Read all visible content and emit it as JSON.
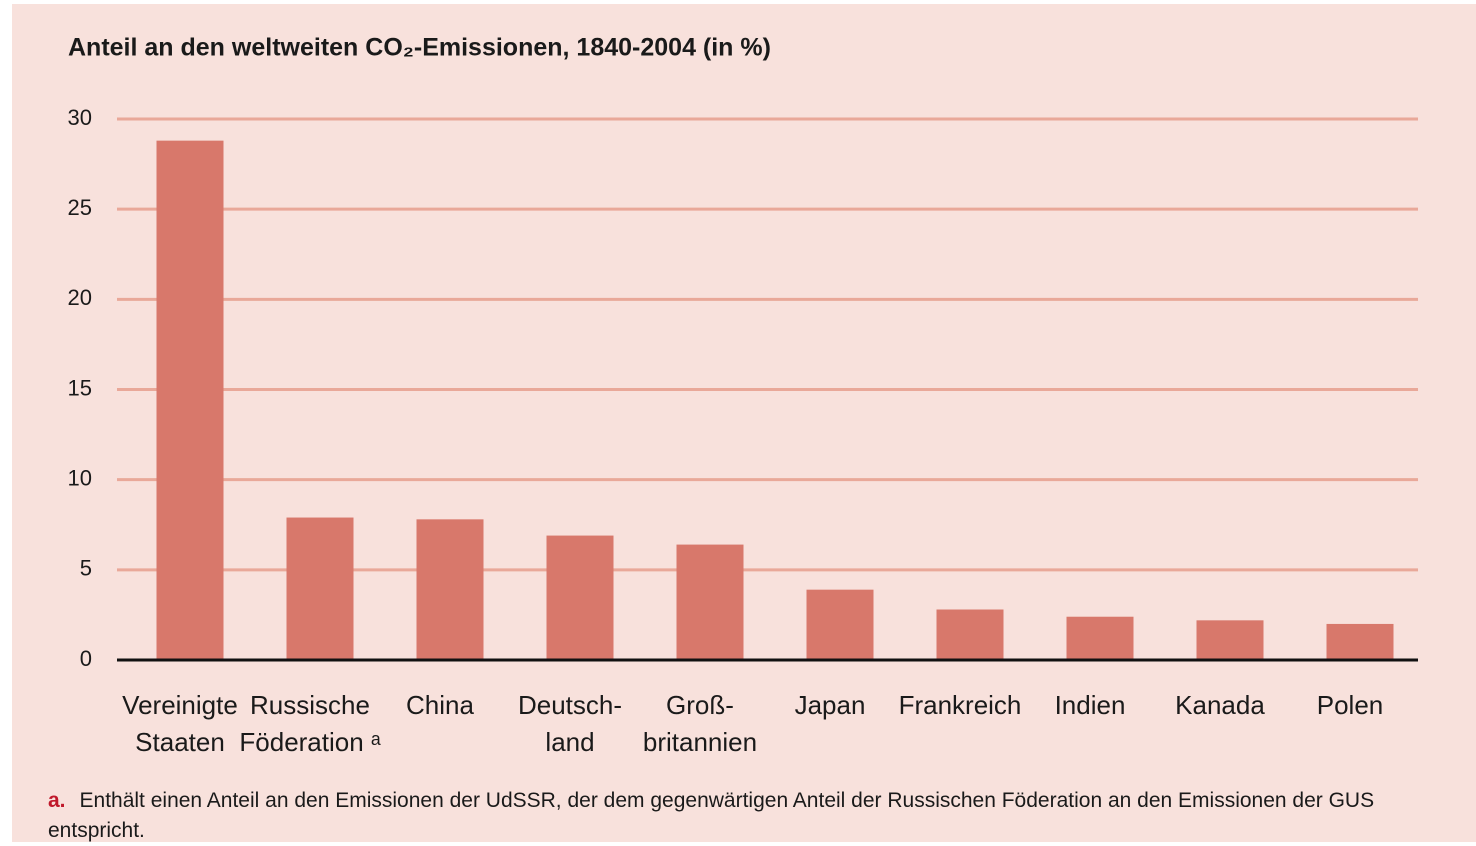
{
  "chart_data": {
    "type": "bar",
    "title": "Anteil an den weltweiten CO₂-Emissionen, 1840-2004 (in %)",
    "categories": [
      [
        "Vereinigte",
        "Staaten"
      ],
      [
        "Russische",
        "Föderation ᵃ"
      ],
      [
        "China"
      ],
      [
        "Deutsch-",
        "land"
      ],
      [
        "Groß-",
        "britannien"
      ],
      [
        "Japan"
      ],
      [
        "Frankreich"
      ],
      [
        "Indien"
      ],
      [
        "Kanada"
      ],
      [
        "Polen"
      ]
    ],
    "values": [
      28.8,
      7.9,
      7.8,
      6.9,
      6.4,
      3.9,
      2.8,
      2.4,
      2.2,
      2.0
    ],
    "color": "#d8786b",
    "grid_color": "#e9a899",
    "ylim": [
      0,
      30
    ],
    "yticks": [
      0,
      5,
      10,
      15,
      20,
      25,
      30
    ],
    "grid": true,
    "footnote": {
      "marker": "a.",
      "text": "Enthält einen Anteil an den Emissionen der UdSSR, der dem gegenwärtigen Anteil der Russischen Föderation an den Emissionen der GUS entspricht."
    }
  }
}
